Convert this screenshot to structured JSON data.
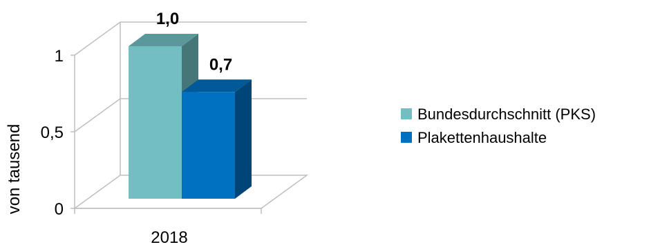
{
  "chart_data": {
    "type": "bar",
    "categories": [
      "2018"
    ],
    "series": [
      {
        "name": "Bundesdurchschnitt (PKS)",
        "values": [
          1.0
        ],
        "label": "1,0",
        "color": "#72BEC3"
      },
      {
        "name": "Plakettenhaushalte",
        "values": [
          0.7
        ],
        "label": "0,7",
        "color": "#0070C0"
      }
    ],
    "ylabel": "von tausend",
    "xlabel": "",
    "ylim": [
      0,
      1.0
    ],
    "yticks": [
      {
        "value": 0,
        "label": "0"
      },
      {
        "value": 0.5,
        "label": "0,5"
      },
      {
        "value": 1,
        "label": "1"
      }
    ],
    "grid": true,
    "style": "3d-clustered-column",
    "legend_position": "right"
  }
}
